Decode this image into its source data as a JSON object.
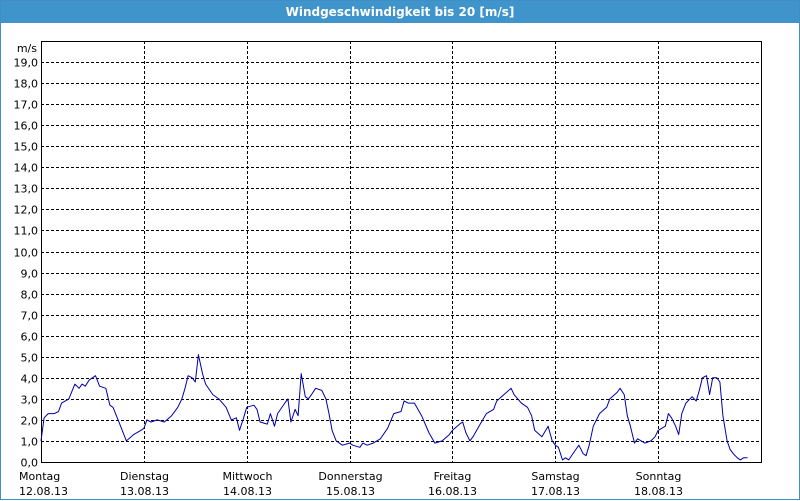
{
  "window": {
    "title": "Windgeschwindigkeit bis 20 [m/s]"
  },
  "colors": {
    "titlebar": "#3f94cb",
    "line": "#0000aa",
    "grid": "#000000"
  },
  "chart_data": {
    "type": "line",
    "ylabel": "m/s",
    "ylim": [
      0,
      20
    ],
    "yticks": [
      "0,0",
      "1,0",
      "2,0",
      "3,0",
      "4,0",
      "5,0",
      "6,0",
      "7,0",
      "8,0",
      "9,0",
      "10,0",
      "11,0",
      "12,0",
      "13,0",
      "14,0",
      "15,0",
      "16,0",
      "17,0",
      "18,0",
      "19,0"
    ],
    "xlim_days": [
      0,
      7.0
    ],
    "grid": true,
    "x_categories": [
      {
        "day": "Montag",
        "date": "12.08.13"
      },
      {
        "day": "Dienstag",
        "date": "13.08.13"
      },
      {
        "day": "Mittwoch",
        "date": "14.08.13"
      },
      {
        "day": "Donnerstag",
        "date": "15.08.13"
      },
      {
        "day": "Freitag",
        "date": "16.08.13"
      },
      {
        "day": "Samstag",
        "date": "17.08.13"
      },
      {
        "day": "Sonntag",
        "date": "18.08.13"
      }
    ],
    "series": [
      {
        "values": [
          [
            0.0,
            1.0
          ],
          [
            0.03,
            2.1
          ],
          [
            0.07,
            2.3
          ],
          [
            0.13,
            2.3
          ],
          [
            0.17,
            2.4
          ],
          [
            0.2,
            2.8
          ],
          [
            0.27,
            3.0
          ],
          [
            0.33,
            3.7
          ],
          [
            0.37,
            3.5
          ],
          [
            0.4,
            3.7
          ],
          [
            0.43,
            3.6
          ],
          [
            0.47,
            3.9
          ],
          [
            0.53,
            4.1
          ],
          [
            0.57,
            3.6
          ],
          [
            0.63,
            3.5
          ],
          [
            0.67,
            2.7
          ],
          [
            0.7,
            2.6
          ],
          [
            0.75,
            2.0
          ],
          [
            0.83,
            1.0
          ],
          [
            0.9,
            1.3
          ],
          [
            0.97,
            1.5
          ],
          [
            1.0,
            1.6
          ],
          [
            1.03,
            2.0
          ],
          [
            1.07,
            1.9
          ],
          [
            1.13,
            2.0
          ],
          [
            1.2,
            1.9
          ],
          [
            1.27,
            2.2
          ],
          [
            1.33,
            2.6
          ],
          [
            1.37,
            3.0
          ],
          [
            1.4,
            3.5
          ],
          [
            1.43,
            4.1
          ],
          [
            1.47,
            4.0
          ],
          [
            1.5,
            3.8
          ],
          [
            1.53,
            5.1
          ],
          [
            1.57,
            4.2
          ],
          [
            1.6,
            3.7
          ],
          [
            1.67,
            3.2
          ],
          [
            1.73,
            3.0
          ],
          [
            1.8,
            2.6
          ],
          [
            1.85,
            2.0
          ],
          [
            1.9,
            2.1
          ],
          [
            1.93,
            1.5
          ],
          [
            1.97,
            2.1
          ],
          [
            2.0,
            2.6
          ],
          [
            2.07,
            2.7
          ],
          [
            2.1,
            2.5
          ],
          [
            2.13,
            1.9
          ],
          [
            2.2,
            1.8
          ],
          [
            2.23,
            2.3
          ],
          [
            2.27,
            1.7
          ],
          [
            2.3,
            2.3
          ],
          [
            2.37,
            2.8
          ],
          [
            2.4,
            3.0
          ],
          [
            2.43,
            1.9
          ],
          [
            2.47,
            2.5
          ],
          [
            2.5,
            2.2
          ],
          [
            2.53,
            4.2
          ],
          [
            2.57,
            3.1
          ],
          [
            2.6,
            3.0
          ],
          [
            2.63,
            3.2
          ],
          [
            2.67,
            3.5
          ],
          [
            2.73,
            3.4
          ],
          [
            2.77,
            3.0
          ],
          [
            2.8,
            2.3
          ],
          [
            2.83,
            1.5
          ],
          [
            2.87,
            1.0
          ],
          [
            2.93,
            0.8
          ],
          [
            3.0,
            0.9
          ],
          [
            3.03,
            0.8
          ],
          [
            3.1,
            0.7
          ],
          [
            3.13,
            0.9
          ],
          [
            3.17,
            0.8
          ],
          [
            3.23,
            0.9
          ],
          [
            3.3,
            1.1
          ],
          [
            3.37,
            1.6
          ],
          [
            3.43,
            2.3
          ],
          [
            3.5,
            2.4
          ],
          [
            3.53,
            2.9
          ],
          [
            3.57,
            2.8
          ],
          [
            3.63,
            2.8
          ],
          [
            3.7,
            2.2
          ],
          [
            3.77,
            1.4
          ],
          [
            3.83,
            0.9
          ],
          [
            3.9,
            1.0
          ],
          [
            3.97,
            1.3
          ],
          [
            4.0,
            1.5
          ],
          [
            4.07,
            1.8
          ],
          [
            4.1,
            1.9
          ],
          [
            4.13,
            1.4
          ],
          [
            4.17,
            1.0
          ],
          [
            4.2,
            1.2
          ],
          [
            4.27,
            1.8
          ],
          [
            4.33,
            2.3
          ],
          [
            4.4,
            2.5
          ],
          [
            4.43,
            2.9
          ],
          [
            4.5,
            3.2
          ],
          [
            4.57,
            3.5
          ],
          [
            4.6,
            3.2
          ],
          [
            4.67,
            2.8
          ],
          [
            4.73,
            2.6
          ],
          [
            4.77,
            2.2
          ],
          [
            4.8,
            1.5
          ],
          [
            4.87,
            1.2
          ],
          [
            4.93,
            1.7
          ],
          [
            4.97,
            1.0
          ],
          [
            5.0,
            0.8
          ],
          [
            5.03,
            0.7
          ],
          [
            5.07,
            0.1
          ],
          [
            5.1,
            0.2
          ],
          [
            5.13,
            0.1
          ],
          [
            5.2,
            0.6
          ],
          [
            5.23,
            0.8
          ],
          [
            5.27,
            0.4
          ],
          [
            5.3,
            0.3
          ],
          [
            5.33,
            0.8
          ],
          [
            5.37,
            1.7
          ],
          [
            5.43,
            2.3
          ],
          [
            5.5,
            2.6
          ],
          [
            5.53,
            3.0
          ],
          [
            5.6,
            3.3
          ],
          [
            5.63,
            3.5
          ],
          [
            5.67,
            3.2
          ],
          [
            5.7,
            2.2
          ],
          [
            5.73,
            1.7
          ],
          [
            5.77,
            0.9
          ],
          [
            5.8,
            1.1
          ],
          [
            5.87,
            0.9
          ],
          [
            5.93,
            1.0
          ],
          [
            5.97,
            1.2
          ],
          [
            6.0,
            1.5
          ],
          [
            6.07,
            1.7
          ],
          [
            6.1,
            2.3
          ],
          [
            6.13,
            2.1
          ],
          [
            6.17,
            1.7
          ],
          [
            6.2,
            1.3
          ],
          [
            6.23,
            2.3
          ],
          [
            6.27,
            2.8
          ],
          [
            6.33,
            3.1
          ],
          [
            6.37,
            2.9
          ],
          [
            6.4,
            3.4
          ],
          [
            6.43,
            4.0
          ],
          [
            6.47,
            4.1
          ],
          [
            6.5,
            3.2
          ],
          [
            6.53,
            4.0
          ],
          [
            6.57,
            4.0
          ],
          [
            6.6,
            3.8
          ],
          [
            6.63,
            2.2
          ],
          [
            6.67,
            1.0
          ],
          [
            6.7,
            0.6
          ],
          [
            6.73,
            0.4
          ],
          [
            6.77,
            0.2
          ],
          [
            6.8,
            0.1
          ],
          [
            6.83,
            0.2
          ],
          [
            6.87,
            0.2
          ]
        ]
      }
    ]
  }
}
